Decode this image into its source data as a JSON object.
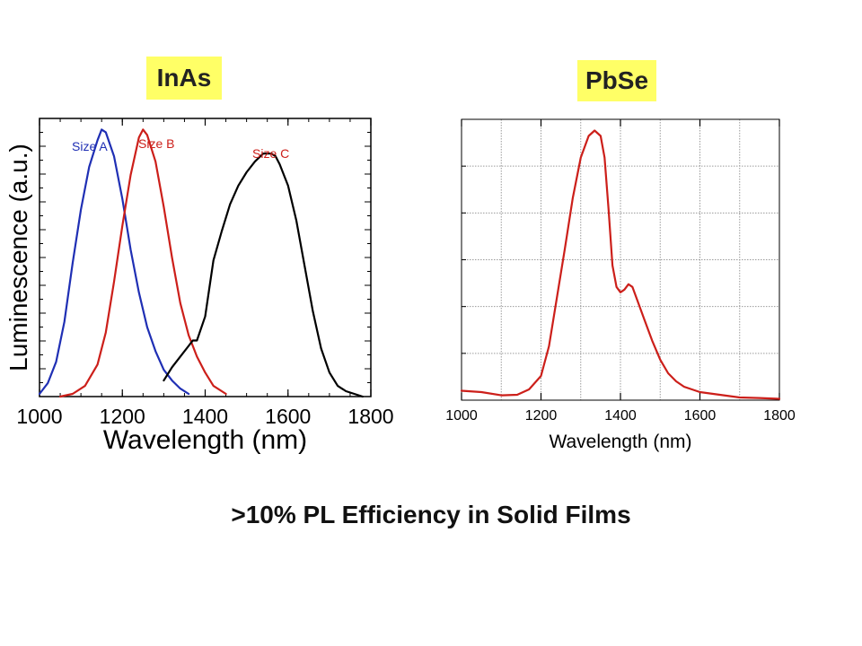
{
  "caption": ">10% PL Efficiency in Solid Films",
  "chart_data": [
    {
      "type": "line",
      "title": "InAs",
      "xlabel": "Wavelength (nm)",
      "ylabel": "Luminescence (a.u.)",
      "xlim": [
        1000,
        1800
      ],
      "ylim": [
        0,
        1
      ],
      "x_ticks": [
        "1000",
        "1200",
        "1400",
        "1600",
        "1800"
      ],
      "grid": false,
      "series": [
        {
          "name": "Size A",
          "color": "#1f2fb4",
          "x": [
            1000,
            1020,
            1040,
            1060,
            1080,
            1100,
            1120,
            1140,
            1150,
            1160,
            1180,
            1200,
            1220,
            1240,
            1260,
            1280,
            1300,
            1320,
            1340,
            1360
          ],
          "y": [
            0.01,
            0.05,
            0.13,
            0.28,
            0.5,
            0.7,
            0.86,
            0.96,
            1.0,
            0.99,
            0.9,
            0.74,
            0.55,
            0.39,
            0.26,
            0.17,
            0.1,
            0.06,
            0.03,
            0.01
          ]
        },
        {
          "name": "Size B",
          "color": "#cc1f1a",
          "x": [
            1050,
            1080,
            1110,
            1140,
            1160,
            1180,
            1200,
            1220,
            1240,
            1250,
            1260,
            1280,
            1300,
            1320,
            1340,
            1360,
            1380,
            1400,
            1420,
            1450
          ],
          "y": [
            0.0,
            0.01,
            0.04,
            0.12,
            0.24,
            0.43,
            0.64,
            0.83,
            0.97,
            1.0,
            0.98,
            0.88,
            0.71,
            0.52,
            0.35,
            0.23,
            0.15,
            0.09,
            0.04,
            0.01
          ]
        },
        {
          "name": "Size C",
          "color": "#000000",
          "x": [
            1300,
            1320,
            1340,
            1360,
            1370,
            1380,
            1400,
            1420,
            1440,
            1460,
            1480,
            1500,
            1520,
            1540,
            1560,
            1570,
            1580,
            1600,
            1620,
            1640,
            1660,
            1680,
            1700,
            1720,
            1740,
            1760,
            1780
          ],
          "y": [
            0.06,
            0.11,
            0.15,
            0.19,
            0.21,
            0.21,
            0.3,
            0.51,
            0.62,
            0.72,
            0.79,
            0.84,
            0.88,
            0.91,
            0.91,
            0.9,
            0.87,
            0.79,
            0.66,
            0.49,
            0.32,
            0.18,
            0.09,
            0.04,
            0.02,
            0.01,
            0.0
          ]
        }
      ]
    },
    {
      "type": "line",
      "title": "PbSe",
      "xlabel": "Wavelength (nm)",
      "ylabel": "",
      "xlim": [
        1000,
        1800
      ],
      "ylim": [
        0,
        1
      ],
      "x_ticks": [
        "1000",
        "1200",
        "1400",
        "1600",
        "1800"
      ],
      "grid": true,
      "series": [
        {
          "name": "",
          "color": "#cc1f1a",
          "x": [
            1000,
            1050,
            1100,
            1140,
            1170,
            1200,
            1220,
            1240,
            1260,
            1280,
            1300,
            1320,
            1335,
            1350,
            1360,
            1370,
            1380,
            1390,
            1400,
            1410,
            1420,
            1430,
            1440,
            1460,
            1480,
            1500,
            1520,
            1540,
            1560,
            1580,
            1600,
            1650,
            1700,
            1750,
            1800
          ],
          "y": [
            0.035,
            0.03,
            0.018,
            0.02,
            0.04,
            0.09,
            0.2,
            0.38,
            0.56,
            0.75,
            0.9,
            0.98,
            1.0,
            0.98,
            0.9,
            0.71,
            0.5,
            0.42,
            0.4,
            0.41,
            0.43,
            0.42,
            0.38,
            0.3,
            0.22,
            0.15,
            0.1,
            0.07,
            0.05,
            0.04,
            0.03,
            0.02,
            0.01,
            0.008,
            0.005
          ]
        }
      ]
    }
  ]
}
